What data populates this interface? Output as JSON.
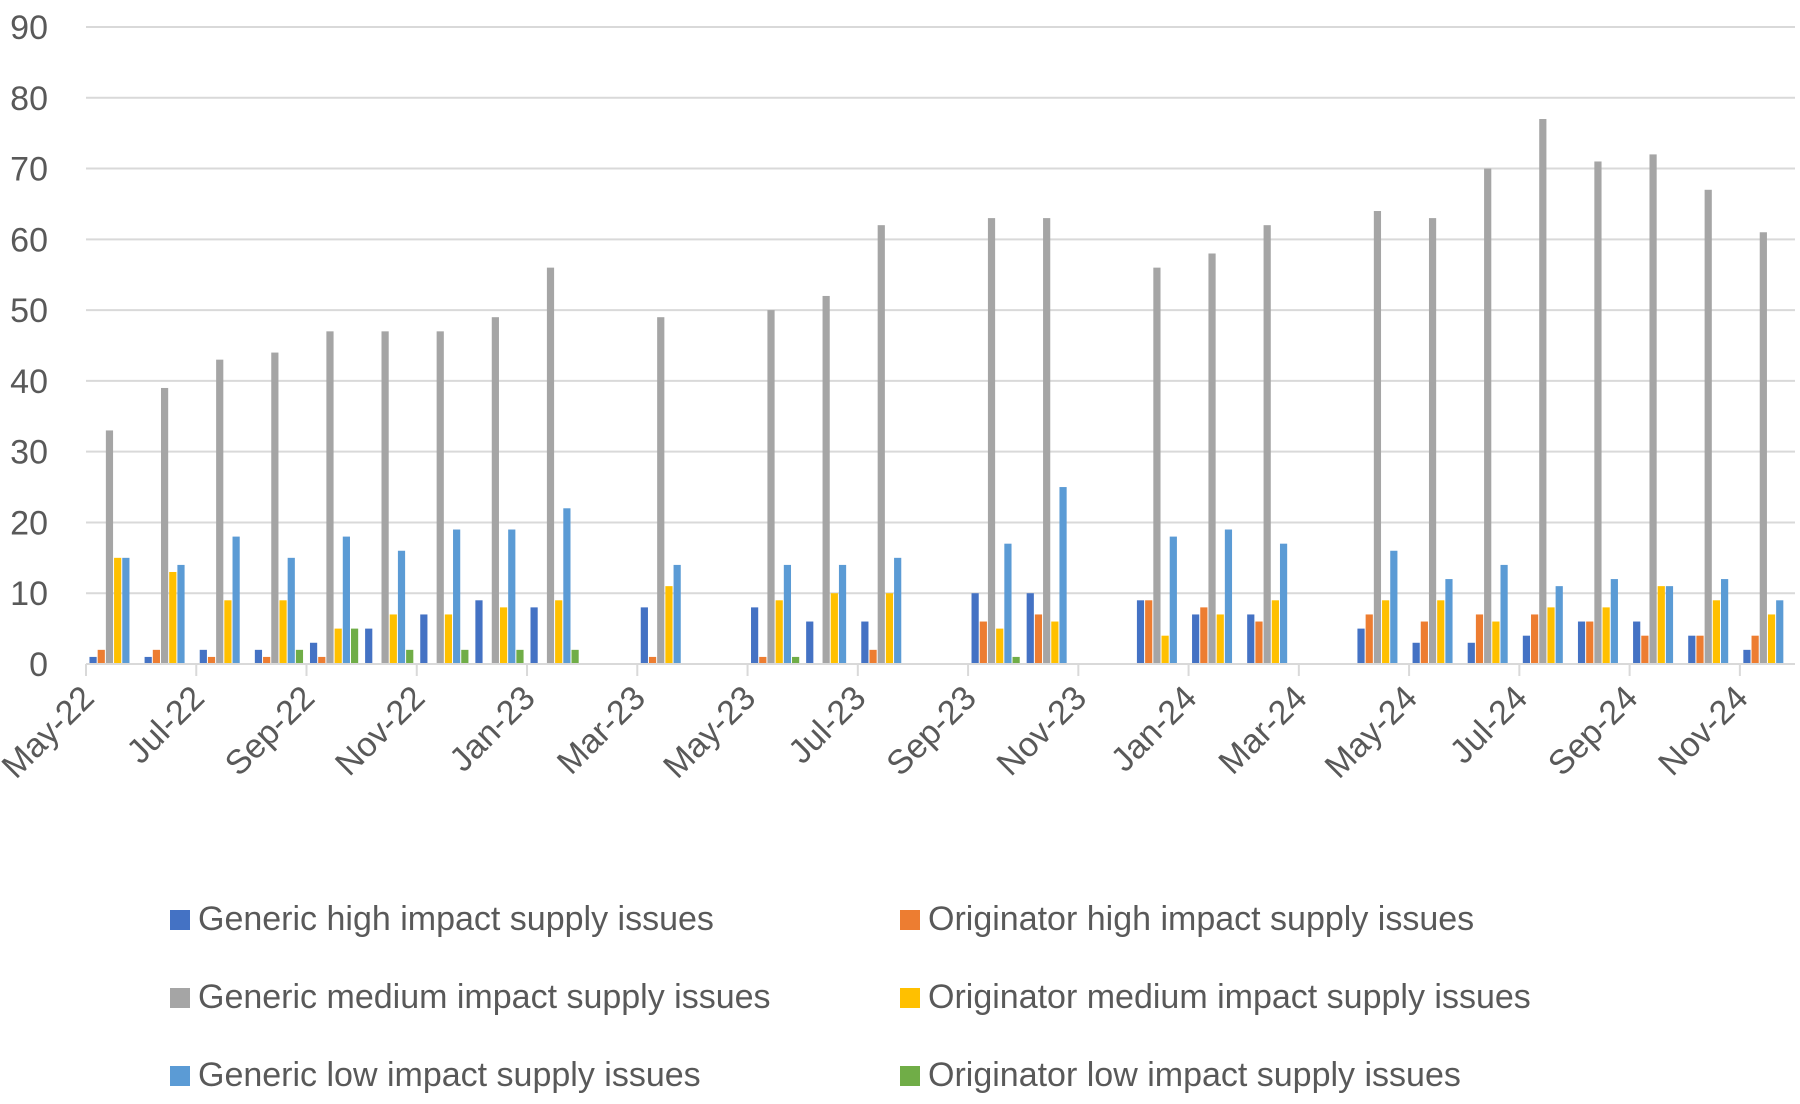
{
  "chart_data": {
    "type": "bar",
    "title": "",
    "xlabel": "",
    "ylabel": "",
    "ylim": [
      0,
      90
    ],
    "yticks": [
      0,
      10,
      20,
      30,
      40,
      50,
      60,
      70,
      80,
      90
    ],
    "grid": true,
    "legend_position": "bottom",
    "categories": [
      "May-22",
      "Jun-22",
      "Jul-22",
      "Aug-22",
      "Sep-22",
      "Oct-22",
      "Nov-22",
      "Dec-22",
      "Jan-23",
      "Feb-23",
      "Mar-23",
      "Apr-23",
      "May-23",
      "Jun-23",
      "Jul-23",
      "Aug-23",
      "Sep-23",
      "Oct-23",
      "Nov-23",
      "Dec-23",
      "Jan-24",
      "Feb-24",
      "Mar-24",
      "Apr-24",
      "May-24",
      "Jun-24",
      "Jul-24",
      "Aug-24",
      "Sep-24",
      "Oct-24",
      "Nov-24"
    ],
    "tick_labels": [
      "May-22",
      "Jul-22",
      "Sep-22",
      "Nov-22",
      "Jan-23",
      "Mar-23",
      "May-23",
      "Jul-23",
      "Sep-23",
      "Nov-23",
      "Jan-24",
      "Mar-24",
      "May-24",
      "Jul-24",
      "Sep-24",
      "Nov-24"
    ],
    "series": [
      {
        "name": "Generic high impact supply issues",
        "color": "#4472C4",
        "values": [
          1,
          1,
          2,
          2,
          3,
          5,
          7,
          9,
          8,
          null,
          8,
          null,
          8,
          6,
          6,
          null,
          10,
          10,
          null,
          9,
          7,
          7,
          null,
          5,
          3,
          3,
          4,
          6,
          6,
          4,
          2
        ]
      },
      {
        "name": "Originator high impact supply issues",
        "color": "#ED7D31",
        "values": [
          2,
          2,
          1,
          1,
          1,
          0,
          0,
          0,
          0,
          null,
          1,
          null,
          1,
          0,
          2,
          null,
          6,
          7,
          null,
          9,
          8,
          6,
          null,
          7,
          6,
          7,
          7,
          6,
          4,
          4,
          4
        ]
      },
      {
        "name": "Generic medium impact supply issues",
        "color": "#A5A5A5",
        "values": [
          33,
          39,
          43,
          44,
          47,
          47,
          47,
          49,
          56,
          null,
          49,
          null,
          50,
          52,
          62,
          null,
          63,
          63,
          null,
          56,
          58,
          62,
          null,
          64,
          63,
          70,
          77,
          71,
          72,
          67,
          61
        ]
      },
      {
        "name": "Originator medium impact supply issues",
        "color": "#FFC000",
        "values": [
          15,
          13,
          9,
          9,
          5,
          7,
          7,
          8,
          9,
          null,
          11,
          null,
          9,
          10,
          10,
          null,
          5,
          6,
          null,
          4,
          7,
          9,
          null,
          9,
          9,
          6,
          8,
          8,
          11,
          9,
          7
        ]
      },
      {
        "name": "Generic low impact supply issues",
        "color": "#5B9BD5",
        "values": [
          15,
          14,
          18,
          15,
          18,
          16,
          19,
          19,
          22,
          null,
          14,
          null,
          14,
          14,
          15,
          null,
          17,
          25,
          null,
          18,
          19,
          17,
          null,
          16,
          12,
          14,
          11,
          12,
          11,
          12,
          9
        ]
      },
      {
        "name": "Originator low impact supply issues",
        "color": "#70AD47",
        "values": [
          0,
          0,
          0,
          2,
          5,
          2,
          2,
          2,
          2,
          null,
          0,
          null,
          1,
          0,
          0,
          null,
          1,
          0,
          null,
          0,
          0,
          0,
          null,
          0,
          0,
          0,
          0,
          0,
          0,
          0,
          0
        ]
      }
    ]
  }
}
